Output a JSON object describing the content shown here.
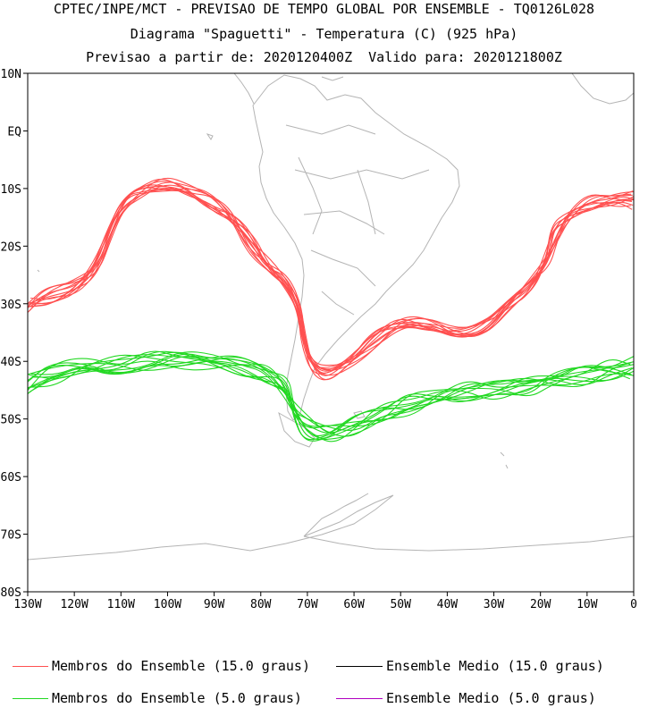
{
  "title": {
    "line1": "CPTEC/INPE/MCT - PREVISAO DE TEMPO GLOBAL POR ENSEMBLE - TQ0126L028",
    "line2": "Diagrama \"Spaguetti\" - Temperatura (C) (925 hPa)",
    "line3": "Previsao a partir de: 2020120400Z  Valido para: 2020121800Z"
  },
  "axes": {
    "lat_labels": [
      "10N",
      "EQ",
      "10S",
      "20S",
      "30S",
      "40S",
      "50S",
      "60S",
      "70S",
      "80S"
    ],
    "lon_labels": [
      "130W",
      "120W",
      "110W",
      "100W",
      "90W",
      "80W",
      "70W",
      "60W",
      "50W",
      "40W",
      "30W",
      "20W",
      "10W",
      "0"
    ]
  },
  "legend": [
    {
      "label": "Membros do Ensemble (15.0 graus)",
      "color": "#ff5050"
    },
    {
      "label": "Ensemble Medio (15.0 graus)",
      "color": "#000000"
    },
    {
      "label": "Membros do Ensemble (5.0 graus)",
      "color": "#22d822"
    },
    {
      "label": "Ensemble Medio (5.0 graus)",
      "color": "#b000c0"
    }
  ],
  "colors": {
    "coastline": "#b4b4b4",
    "frame": "#000000"
  }
}
